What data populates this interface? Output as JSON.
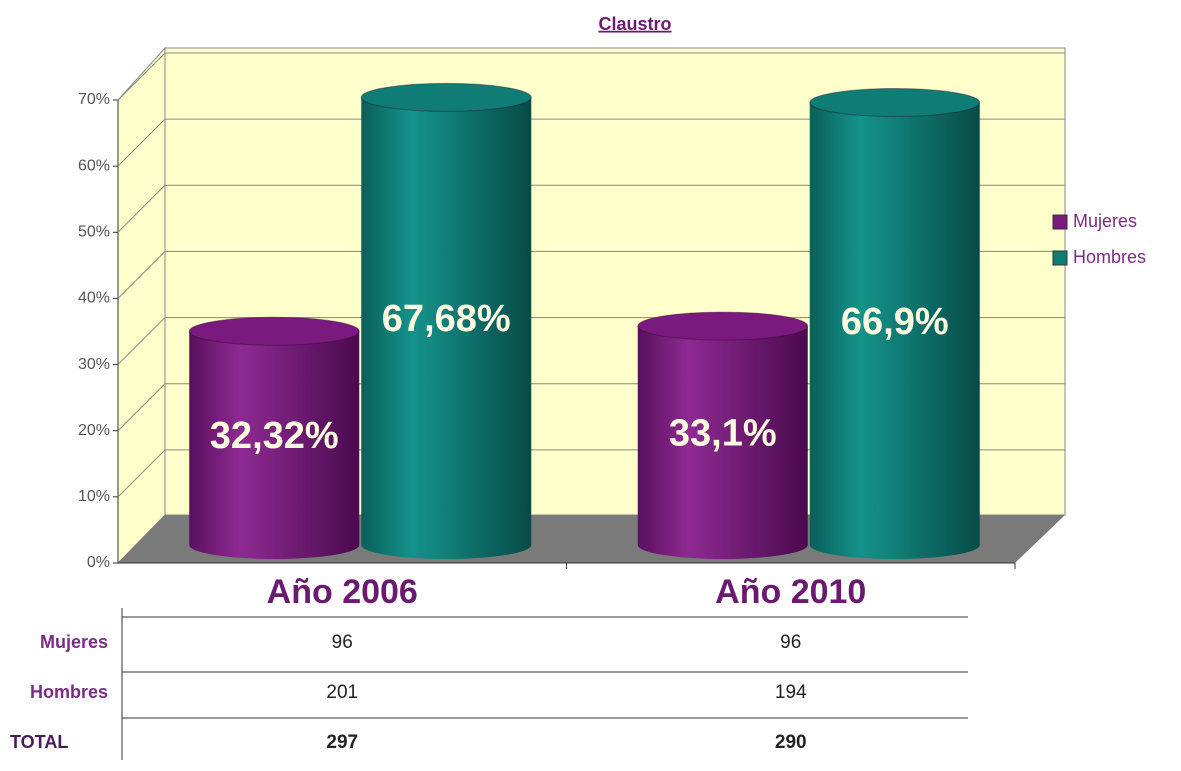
{
  "chart_data": {
    "type": "bar",
    "title": "Claustro",
    "categories": [
      "Año 2006",
      "Año 2010"
    ],
    "series": [
      {
        "name": "Mujeres",
        "color": "#7b1a7e",
        "values": [
          32.32,
          33.1
        ],
        "value_labels": [
          "32,32%",
          "33,1%"
        ]
      },
      {
        "name": "Hombres",
        "color": "#0f7c76",
        "values": [
          67.68,
          66.9
        ],
        "value_labels": [
          "67,68%",
          "66,9%"
        ]
      }
    ],
    "ylim": [
      0,
      70
    ],
    "yticks": [
      {
        "value": 0,
        "label": "0%"
      },
      {
        "value": 10,
        "label": "10%"
      },
      {
        "value": 20,
        "label": "20%"
      },
      {
        "value": 30,
        "label": "30%"
      },
      {
        "value": 40,
        "label": "40%"
      },
      {
        "value": 50,
        "label": "50%"
      },
      {
        "value": 60,
        "label": "60%"
      },
      {
        "value": 70,
        "label": "70%"
      }
    ],
    "grid": true,
    "legend": "right",
    "data_table": {
      "rows": [
        {
          "label": "Mujeres",
          "values": [
            "96",
            "96"
          ]
        },
        {
          "label": "Hombres",
          "values": [
            "201",
            "194"
          ]
        },
        {
          "label": "TOTAL",
          "values": [
            "297",
            "290"
          ]
        }
      ]
    }
  }
}
